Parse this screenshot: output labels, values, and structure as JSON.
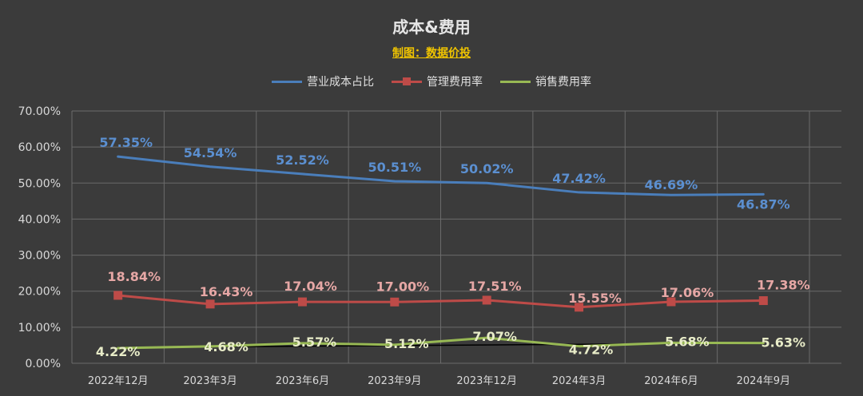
{
  "title": "成本&费用",
  "subtitle": "制图：数据价投",
  "chart_data": {
    "type": "line",
    "categories": [
      "2022年12月",
      "2023年3月",
      "2023年6月",
      "2023年9月",
      "2023年12月",
      "2024年3月",
      "2024年6月",
      "2024年9月"
    ],
    "ylim": [
      0,
      70
    ],
    "yticks": [
      "0.00%",
      "10.00%",
      "20.00%",
      "30.00%",
      "40.00%",
      "50.00%",
      "60.00%",
      "70.00%"
    ],
    "grid": true,
    "legend_position": "top",
    "series": [
      {
        "name": "营业成本占比",
        "color": "#4a7ebb",
        "label_color": "#5b8fd0",
        "marker": "none",
        "values": [
          57.35,
          54.54,
          52.52,
          50.51,
          50.02,
          47.42,
          46.69,
          46.87
        ],
        "labels": [
          "57.35%",
          "54.54%",
          "52.52%",
          "50.51%",
          "50.02%",
          "47.42%",
          "46.69%",
          "46.87%"
        ]
      },
      {
        "name": "管理费用率",
        "color": "#be4b48",
        "label_color": "#e6a7a5",
        "marker": "square",
        "values": [
          18.84,
          16.43,
          17.04,
          17.0,
          17.51,
          15.55,
          17.06,
          17.38
        ],
        "labels": [
          "18.84%",
          "16.43%",
          "17.04%",
          "17.00%",
          "17.51%",
          "15.55%",
          "17.06%",
          "17.38%"
        ]
      },
      {
        "name": "销售费用率",
        "color": "#98b954",
        "label_color": "#e8ecc8",
        "marker": "none",
        "values": [
          4.22,
          4.68,
          5.57,
          5.12,
          7.07,
          4.72,
          5.68,
          5.63
        ],
        "labels": [
          "4.22%",
          "4.68%",
          "5.57%",
          "5.12%",
          "7.07%",
          "4.72%",
          "5.68%",
          "5.63%"
        ]
      }
    ],
    "trendline": {
      "color": "#000000",
      "start": 4.4,
      "end": 5.6
    }
  }
}
